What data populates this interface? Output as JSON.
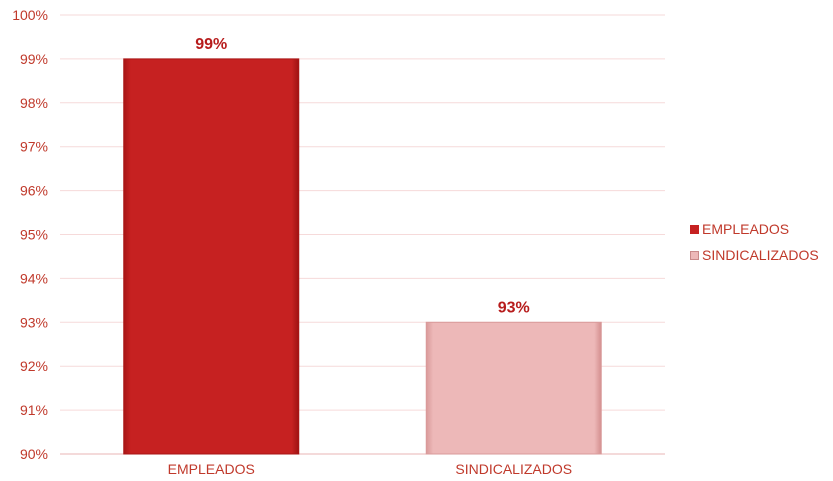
{
  "chart_data": {
    "type": "bar",
    "categories": [
      "EMPLEADOS",
      "SINDICALIZADOS"
    ],
    "values": [
      99,
      93
    ],
    "data_labels": [
      "99%",
      "93%"
    ],
    "ylim": [
      90,
      100
    ],
    "yticks": [
      "90%",
      "91%",
      "92%",
      "93%",
      "94%",
      "95%",
      "96%",
      "97%",
      "98%",
      "99%",
      "100%"
    ],
    "grid": true,
    "legend_position": "right",
    "legend": [
      "EMPLEADOS",
      "SINDICALIZADOS"
    ],
    "colors": [
      "#c62121",
      "#edb8b8"
    ],
    "title": "",
    "xlabel": "",
    "ylabel": ""
  }
}
